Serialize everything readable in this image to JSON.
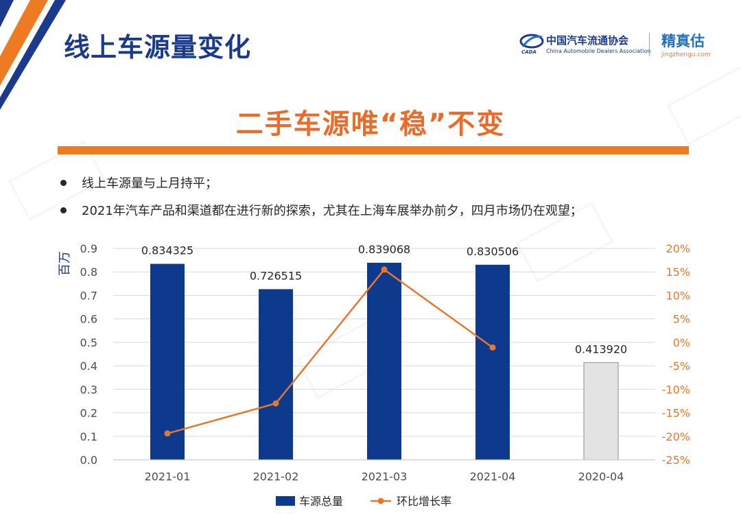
{
  "page": {
    "title": "线上车源量变化",
    "headline": "二手车源唯“稳”不变",
    "bullets": [
      "线上车源量与上月持平；",
      "2021年汽车产品和渠道都在进行新的探索，尤其在上海车展举办前夕，四月市场仍在观望；"
    ]
  },
  "logos": {
    "cada_cn": "中国汽车流通协会",
    "cada_en": "China Automobile Dealers Association",
    "cada_mark_text": "CADA",
    "jzg_cn": "精真估",
    "jzg_en": "jingzhengu.com"
  },
  "colors": {
    "accent_orange": "#ee7b22",
    "title_blue": "#1a3a8c",
    "bar_blue": "#0d3a8c",
    "bar_gray": "#e3e3e3",
    "line_orange": "#e8772e"
  },
  "chart_data": {
    "type": "bar",
    "categories": [
      "2021-01",
      "2021-02",
      "2021-03",
      "2021-04",
      "2020-04"
    ],
    "series": [
      {
        "name": "车源总量",
        "type": "bar",
        "axis": "left",
        "values": [
          0.834325,
          0.726515,
          0.839068,
          0.830506,
          0.41392
        ],
        "labels": [
          "0.834325",
          "0.726515",
          "0.839068",
          "0.830506",
          "0.413920"
        ],
        "highlight_colors": [
          "#0d3a8c",
          "#0d3a8c",
          "#0d3a8c",
          "#0d3a8c",
          "#e3e3e3"
        ]
      },
      {
        "name": "环比增长率",
        "type": "line",
        "axis": "right",
        "values": [
          -19.4,
          -13.0,
          15.5,
          -1.1,
          null
        ]
      }
    ],
    "ylabel": "百万",
    "ylim": [
      0,
      0.9
    ],
    "yticks": [
      "0.0",
      "0.1",
      "0.2",
      "0.3",
      "0.4",
      "0.5",
      "0.6",
      "0.7",
      "0.8",
      "0.9"
    ],
    "y2lim": [
      -25,
      20
    ],
    "y2ticks": [
      "-25%",
      "-20%",
      "-15%",
      "-10%",
      "-5%",
      "0%",
      "5%",
      "10%",
      "15%",
      "20%"
    ],
    "grid": true,
    "legend_position": "bottom"
  }
}
